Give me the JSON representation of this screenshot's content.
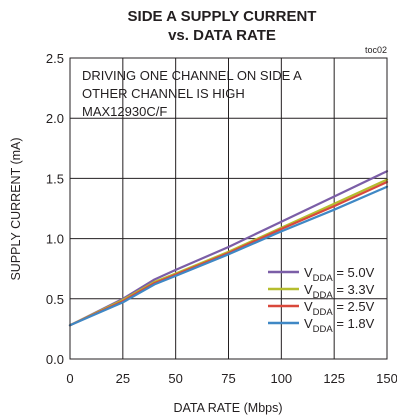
{
  "chart_data": {
    "type": "line",
    "title_line1": "SIDE A SUPPLY CURRENT",
    "title_line2": "vs. DATA RATE",
    "code": "toc02",
    "xlabel": "DATA RATE (Mbps)",
    "ylabel": "SUPPLY CURRENT (mA)",
    "xlim": [
      0,
      150
    ],
    "ylim": [
      0.0,
      2.5
    ],
    "xticks": [
      "0",
      "25",
      "50",
      "75",
      "100",
      "125",
      "150"
    ],
    "yticks": [
      "0.0",
      "0.5",
      "1.0",
      "1.5",
      "2.0",
      "2.5"
    ],
    "grid": true,
    "annotation": [
      "DRIVING ONE CHANNEL ON SIDE A",
      "OTHER CHANNEL IS HIGH",
      "MAX12930C/F"
    ],
    "legend_position": "bottom-right",
    "x": [
      0,
      25,
      40,
      50,
      75,
      100,
      125,
      150
    ],
    "series": [
      {
        "name": "VDDA = 5.0V",
        "label_main": "V",
        "label_sub": "DDA",
        "label_rest": " = 5.0V",
        "color": "#7b5ea7",
        "values": [
          0.28,
          0.5,
          0.66,
          0.74,
          0.93,
          1.14,
          1.35,
          1.56
        ]
      },
      {
        "name": "VDDA = 3.3V",
        "label_main": "V",
        "label_sub": "DDA",
        "label_rest": " = 3.3V",
        "color": "#b5bd2e",
        "values": [
          0.28,
          0.49,
          0.64,
          0.71,
          0.89,
          1.09,
          1.29,
          1.49
        ]
      },
      {
        "name": "VDDA = 2.5V",
        "label_main": "V",
        "label_sub": "DDA",
        "label_rest": " = 2.5V",
        "color": "#d9483b",
        "values": [
          0.28,
          0.48,
          0.63,
          0.7,
          0.88,
          1.08,
          1.27,
          1.47
        ]
      },
      {
        "name": "VDDA = 1.8V",
        "label_main": "V",
        "label_sub": "DDA",
        "label_rest": " = 1.8V",
        "color": "#3f88c5",
        "values": [
          0.28,
          0.47,
          0.62,
          0.69,
          0.87,
          1.06,
          1.24,
          1.43
        ]
      }
    ]
  }
}
